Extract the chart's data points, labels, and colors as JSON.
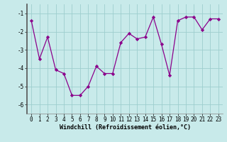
{
  "x": [
    0,
    1,
    2,
    3,
    4,
    5,
    6,
    7,
    8,
    9,
    10,
    11,
    12,
    13,
    14,
    15,
    16,
    17,
    18,
    19,
    20,
    21,
    22,
    23
  ],
  "y": [
    -1.4,
    -3.5,
    -2.3,
    -4.1,
    -4.3,
    -5.5,
    -5.5,
    -5.0,
    -3.9,
    -4.3,
    -4.3,
    -2.6,
    -2.1,
    -2.4,
    -2.3,
    -1.2,
    -2.7,
    -4.4,
    -1.4,
    -1.2,
    -1.2,
    -1.9,
    -1.3,
    -1.3
  ],
  "line_color": "#8B008B",
  "marker_color": "#8B008B",
  "bg_color": "#c8eaea",
  "grid_color": "#9ecece",
  "xlabel": "Windchill (Refroidissement éolien,°C)",
  "ylim": [
    -6.5,
    -0.5
  ],
  "xlim": [
    -0.5,
    23.5
  ],
  "yticks": [
    -6,
    -5,
    -4,
    -3,
    -2,
    -1
  ],
  "xticks": [
    0,
    1,
    2,
    3,
    4,
    5,
    6,
    7,
    8,
    9,
    10,
    11,
    12,
    13,
    14,
    15,
    16,
    17,
    18,
    19,
    20,
    21,
    22,
    23
  ],
  "tick_fontsize": 5.5,
  "xlabel_fontsize": 6.0
}
